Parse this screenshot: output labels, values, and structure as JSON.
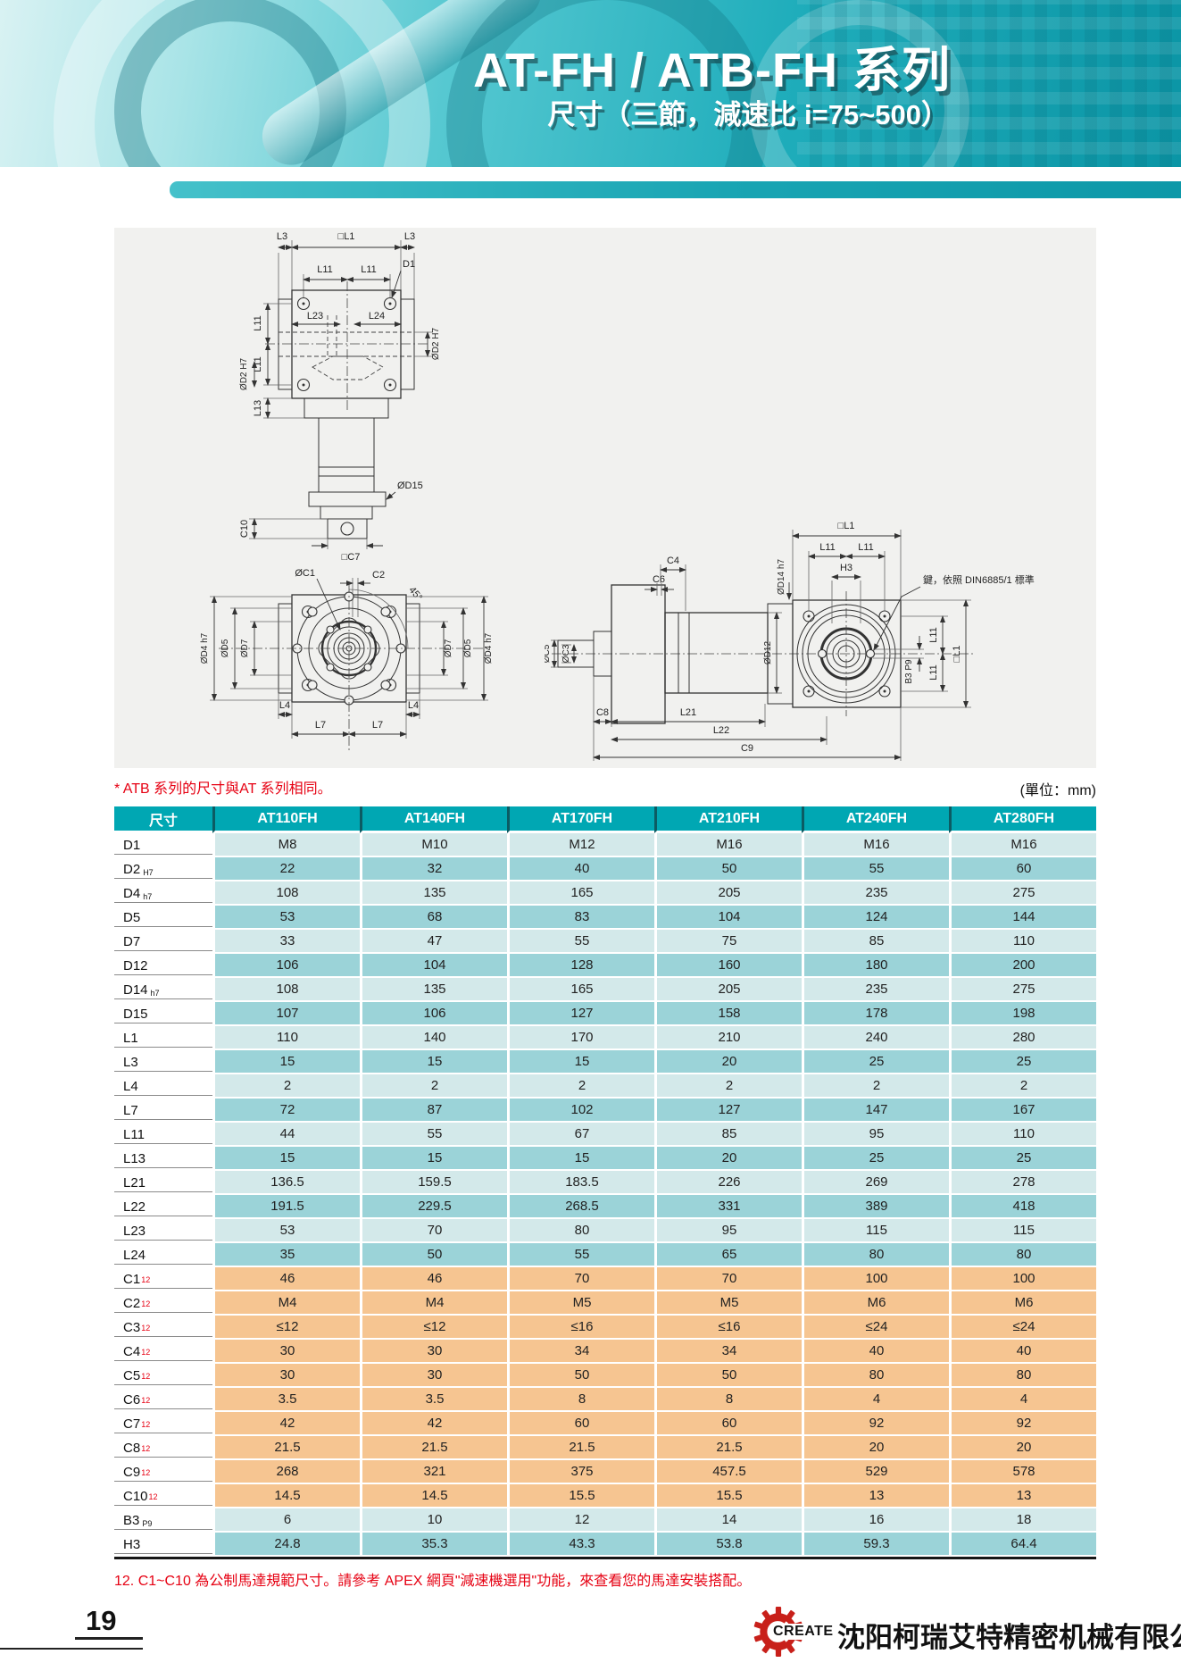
{
  "header": {
    "title": "AT-FH / ATB-FH 系列",
    "subtitle": "尺寸（三節，減速比 i=75~500）"
  },
  "notes": {
    "atb": "* ATB 系列的尺寸與AT 系列相同。",
    "unit": "(單位：mm)",
    "footnote": "12. C1~C10 為公制馬達規範尺寸。請參考 APEX 網頁\"減速機選用\"功能，來查看您的馬達安裝搭配。"
  },
  "diagram": {
    "key_note": "鍵，依照 DIN6885/1 標準",
    "front": [
      "L3",
      "□L1",
      "L3",
      "L11",
      "L11",
      "D1",
      "L23",
      "L24",
      "ØD2 H7",
      "L11",
      "L11",
      "ØD2 H7",
      "L13"
    ],
    "motor": [
      "ØD15",
      "C10",
      "□C7"
    ],
    "flange": [
      "ØC1",
      "C2",
      "45°",
      "ØD4 h7",
      "ØD5",
      "ØD7",
      "ØD7",
      "ØD5",
      "ØD4 h7",
      "L4",
      "L4",
      "L7",
      "L7"
    ],
    "side": [
      "C4",
      "C6",
      "ØC5",
      "ØC3",
      "ØD12",
      "ØD14 h7",
      "□L1",
      "L11",
      "L11",
      "H3",
      "L11",
      "L11",
      "□L1",
      "B3 P9",
      "C8",
      "L21",
      "L22",
      "C9"
    ]
  },
  "table": {
    "columns": [
      "尺寸",
      "AT110FH",
      "AT140FH",
      "AT170FH",
      "AT210FH",
      "AT240FH",
      "AT280FH"
    ],
    "rows": [
      {
        "label": "D1",
        "values": [
          "M8",
          "M10",
          "M12",
          "M16",
          "M16",
          "M16"
        ],
        "band": "light"
      },
      {
        "label": "D2",
        "sub": "H7",
        "values": [
          "22",
          "32",
          "40",
          "50",
          "55",
          "60"
        ],
        "band": "dark"
      },
      {
        "label": "D4",
        "sub": "h7",
        "values": [
          "108",
          "135",
          "165",
          "205",
          "235",
          "275"
        ],
        "band": "light"
      },
      {
        "label": "D5",
        "values": [
          "53",
          "68",
          "83",
          "104",
          "124",
          "144"
        ],
        "band": "dark"
      },
      {
        "label": "D7",
        "values": [
          "33",
          "47",
          "55",
          "75",
          "85",
          "110"
        ],
        "band": "light"
      },
      {
        "label": "D12",
        "values": [
          "106",
          "104",
          "128",
          "160",
          "180",
          "200"
        ],
        "band": "dark"
      },
      {
        "label": "D14",
        "sub": "h7",
        "values": [
          "108",
          "135",
          "165",
          "205",
          "235",
          "275"
        ],
        "band": "light"
      },
      {
        "label": "D15",
        "values": [
          "107",
          "106",
          "127",
          "158",
          "178",
          "198"
        ],
        "band": "dark"
      },
      {
        "label": "L1",
        "values": [
          "110",
          "140",
          "170",
          "210",
          "240",
          "280"
        ],
        "band": "light"
      },
      {
        "label": "L3",
        "values": [
          "15",
          "15",
          "15",
          "20",
          "25",
          "25"
        ],
        "band": "dark"
      },
      {
        "label": "L4",
        "values": [
          "2",
          "2",
          "2",
          "2",
          "2",
          "2"
        ],
        "band": "light"
      },
      {
        "label": "L7",
        "values": [
          "72",
          "87",
          "102",
          "127",
          "147",
          "167"
        ],
        "band": "dark"
      },
      {
        "label": "L11",
        "values": [
          "44",
          "55",
          "67",
          "85",
          "95",
          "110"
        ],
        "band": "light"
      },
      {
        "label": "L13",
        "values": [
          "15",
          "15",
          "15",
          "20",
          "25",
          "25"
        ],
        "band": "dark"
      },
      {
        "label": "L21",
        "values": [
          "136.5",
          "159.5",
          "183.5",
          "226",
          "269",
          "278"
        ],
        "band": "light"
      },
      {
        "label": "L22",
        "values": [
          "191.5",
          "229.5",
          "268.5",
          "331",
          "389",
          "418"
        ],
        "band": "dark"
      },
      {
        "label": "L23",
        "values": [
          "53",
          "70",
          "80",
          "95",
          "115",
          "115"
        ],
        "band": "light"
      },
      {
        "label": "L24",
        "values": [
          "35",
          "50",
          "55",
          "65",
          "80",
          "80"
        ],
        "band": "dark"
      },
      {
        "label": "C1",
        "sup": "12",
        "values": [
          "46",
          "46",
          "70",
          "70",
          "100",
          "100"
        ],
        "band": "orange"
      },
      {
        "label": "C2",
        "sup": "12",
        "values": [
          "M4",
          "M4",
          "M5",
          "M5",
          "M6",
          "M6"
        ],
        "band": "orange"
      },
      {
        "label": "C3",
        "sup": "12",
        "values": [
          "≤12",
          "≤12",
          "≤16",
          "≤16",
          "≤24",
          "≤24"
        ],
        "band": "orange"
      },
      {
        "label": "C4",
        "sup": "12",
        "values": [
          "30",
          "30",
          "34",
          "34",
          "40",
          "40"
        ],
        "band": "orange"
      },
      {
        "label": "C5",
        "sup": "12",
        "values": [
          "30",
          "30",
          "50",
          "50",
          "80",
          "80"
        ],
        "band": "orange"
      },
      {
        "label": "C6",
        "sup": "12",
        "values": [
          "3.5",
          "3.5",
          "8",
          "8",
          "4",
          "4"
        ],
        "band": "orange"
      },
      {
        "label": "C7",
        "sup": "12",
        "values": [
          "42",
          "42",
          "60",
          "60",
          "92",
          "92"
        ],
        "band": "orange"
      },
      {
        "label": "C8",
        "sup": "12",
        "values": [
          "21.5",
          "21.5",
          "21.5",
          "21.5",
          "20",
          "20"
        ],
        "band": "orange"
      },
      {
        "label": "C9",
        "sup": "12",
        "values": [
          "268",
          "321",
          "375",
          "457.5",
          "529",
          "578"
        ],
        "band": "orange"
      },
      {
        "label": "C10",
        "sup": "12",
        "values": [
          "14.5",
          "14.5",
          "15.5",
          "15.5",
          "13",
          "13"
        ],
        "band": "orange"
      },
      {
        "label": "B3",
        "sub": "P9",
        "values": [
          "6",
          "10",
          "12",
          "14",
          "16",
          "18"
        ],
        "band": "light"
      },
      {
        "label": "H3",
        "values": [
          "24.8",
          "35.3",
          "43.3",
          "53.8",
          "59.3",
          "64.4"
        ],
        "band": "dark"
      }
    ]
  },
  "footer": {
    "page_number": "19",
    "logo_text": "CREATE",
    "company": "沈阳柯瑞艾特精密机械有限公司"
  },
  "colors": {
    "header_teal": "#00a7b3",
    "row_light": "#d3e9ea",
    "row_dark": "#9bd3d8",
    "row_orange": "#f6c591",
    "accent_red": "#e60012"
  }
}
